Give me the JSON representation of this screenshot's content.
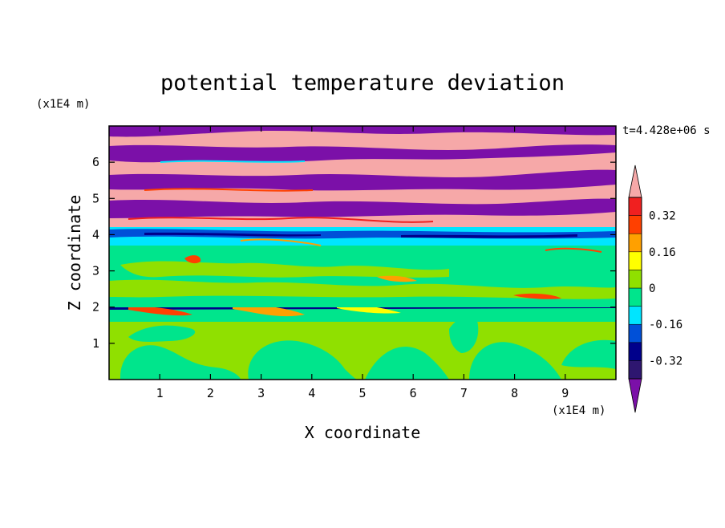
{
  "chart_data": {
    "type": "heatmap",
    "title": "potential temperature deviation",
    "time_label": "t=4.428e+06 s",
    "xlabel": "X coordinate",
    "ylabel": "Z coordinate",
    "x_unit": "(x1E4 m)",
    "y_unit": "(x1E4 m)",
    "xlim": [
      0,
      10
    ],
    "ylim": [
      0,
      7
    ],
    "x_ticks": [
      1,
      2,
      3,
      4,
      5,
      6,
      7,
      8,
      9
    ],
    "y_ticks": [
      1,
      2,
      3,
      4,
      5,
      6
    ],
    "colorbar": {
      "levels": [
        -0.4,
        -0.32,
        -0.24,
        -0.16,
        -0.08,
        0,
        0.08,
        0.16,
        0.24,
        0.32,
        0.4
      ],
      "tick_labels": [
        "0.32",
        "0.16",
        "0",
        "-0.16",
        "-0.32"
      ],
      "tick_values": [
        0.32,
        0.16,
        0,
        -0.16,
        -0.32
      ],
      "colors_low_to_high": [
        "#2e1670",
        "#00008b",
        "#0050d8",
        "#00e5ff",
        "#00e58c",
        "#90e000",
        "#ffff00",
        "#ffa000",
        "#ff4000",
        "#f02020",
        "#f6a8a8"
      ],
      "under_color": "#7b10a8",
      "over_color": "#f6a8a8"
    },
    "field_structure": [
      {
        "z_range": [
          0,
          1.6
        ],
        "description": "mostly slightly positive (0 to 0.08) with rotor-like patches near 0"
      },
      {
        "z_range": [
          1.9,
          2.1
        ],
        "description": "thin negative sheet with positive spots at shear layer"
      },
      {
        "z_range": [
          2.1,
          3.7
        ],
        "description": "near-neutral layer (-0.08 to 0.08)"
      },
      {
        "z_range": [
          3.7,
          4.2
        ],
        "description": "strong negative band (-0.32 to -0.08)"
      },
      {
        "z_range": [
          4.2,
          7.0
        ],
        "description": "alternating bands of strong positive (>0.40) and strong negative (<-0.40)"
      }
    ]
  }
}
